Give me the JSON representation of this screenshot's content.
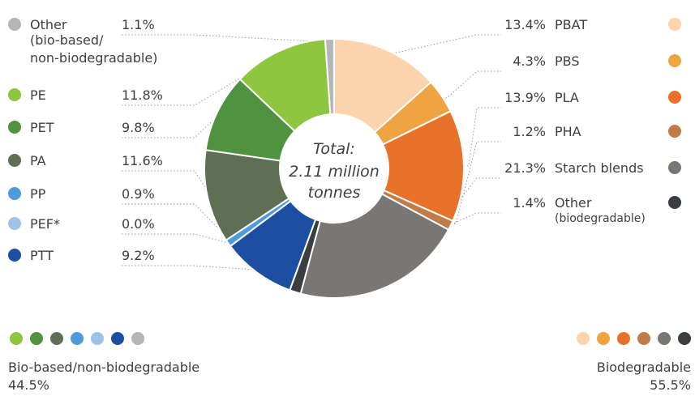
{
  "chart_data": {
    "type": "pie",
    "center_text": [
      "Total:",
      "2.11 million",
      "tonnes"
    ],
    "slices": [
      {
        "name": "PBAT",
        "value": 13.4,
        "label": "13.4%",
        "color": "#fbd3ad"
      },
      {
        "name": "PBS",
        "value": 4.3,
        "label": "4.3%",
        "color": "#eea441"
      },
      {
        "name": "PLA",
        "value": 13.9,
        "label": "13.9%",
        "color": "#e8722a"
      },
      {
        "name": "PHA",
        "value": 1.2,
        "label": "1.2%",
        "color": "#c07c48"
      },
      {
        "name": "Starch blends",
        "value": 21.3,
        "label": "21.3%",
        "color": "#7a7673"
      },
      {
        "name": "Other",
        "sublabel": "(biodegradable)",
        "value": 1.4,
        "label": "1.4%",
        "color": "#3a3d42"
      },
      {
        "name": "PTT",
        "value": 9.2,
        "label": "9.2%",
        "color": "#1c4ea2"
      },
      {
        "name": "PEF*",
        "value": 0.0,
        "label": "0.0%",
        "color": "#9fc3e6"
      },
      {
        "name": "PP",
        "value": 0.9,
        "label": "0.9%",
        "color": "#4f9ad8"
      },
      {
        "name": "PA",
        "value": 11.6,
        "label": "11.6%",
        "color": "#5f6f54"
      },
      {
        "name": "PET",
        "value": 9.8,
        "label": "9.8%",
        "color": "#4f9240"
      },
      {
        "name": "PE",
        "value": 11.8,
        "label": "11.8%",
        "color": "#8dc63f"
      },
      {
        "name": "Other",
        "sublabel": "(bio-based/ non-biodegradable)",
        "value": 1.1,
        "label": "1.1%",
        "color": "#b4b6b8"
      }
    ],
    "groups": [
      {
        "name": "Bio-based/non-biodegradable",
        "value": "44.5%",
        "colors": [
          "#8dc63f",
          "#4f9240",
          "#5f6f54",
          "#4f9ad8",
          "#9fc3e6",
          "#1c4ea2",
          "#b4b6b8"
        ]
      },
      {
        "name": "Biodegradable",
        "value": "55.5%",
        "colors": [
          "#fbd3ad",
          "#eea441",
          "#e8722a",
          "#c07c48",
          "#7a7673",
          "#3a3d42"
        ]
      }
    ]
  }
}
